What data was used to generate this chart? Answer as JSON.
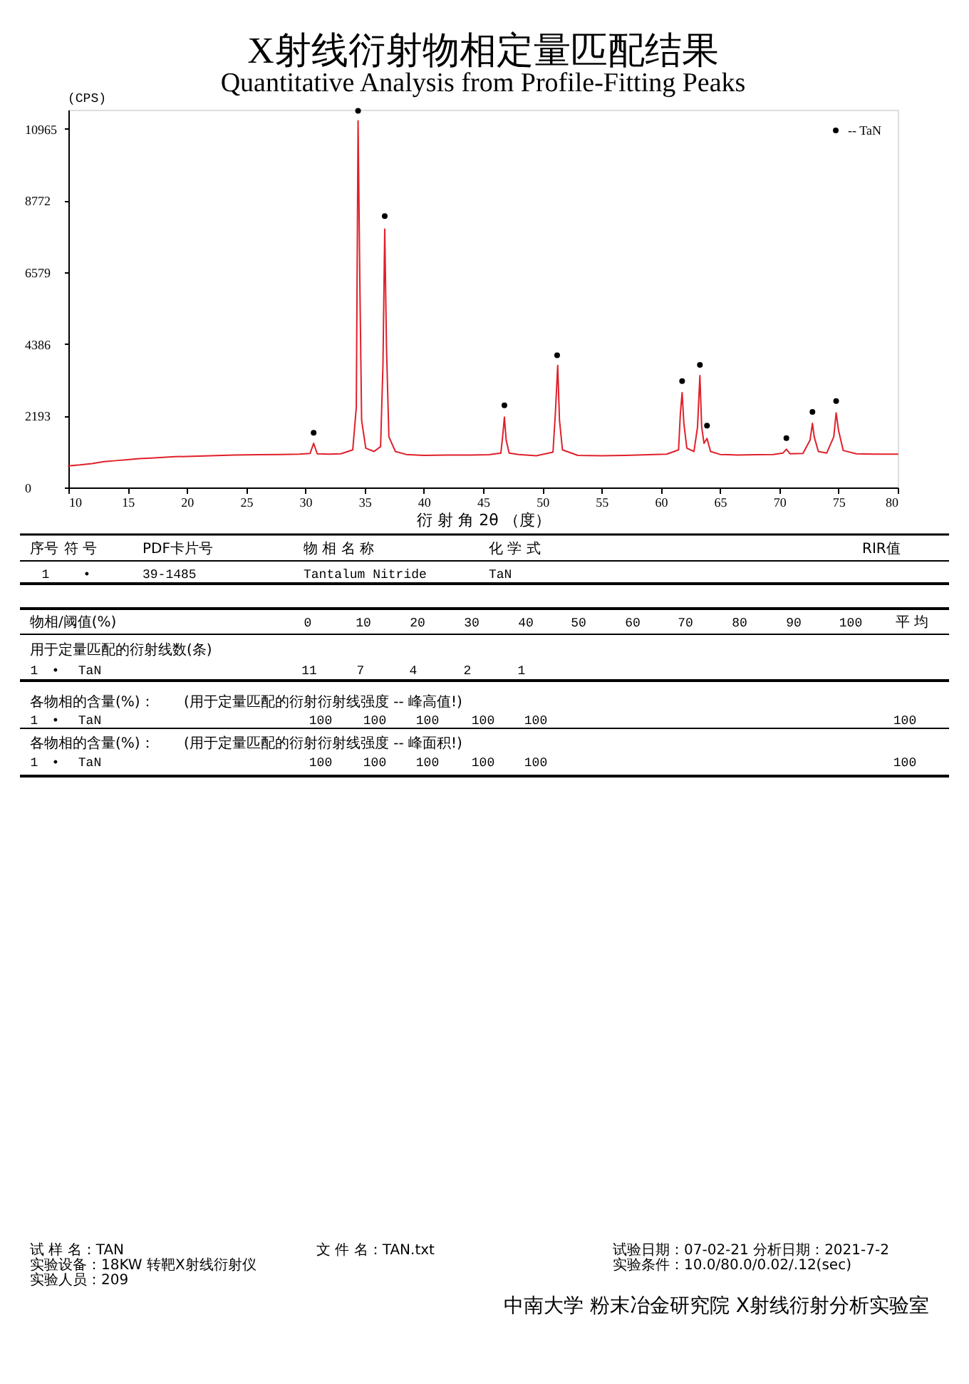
{
  "chart_data": {
    "type": "line",
    "title": "X射线衍射物相定量匹配结果",
    "subtitle": "Quantitative Analysis from Profile-Fitting Peaks",
    "xlabel": "衍 射 角 2θ （度）",
    "ylabel": "(CPS)",
    "xlim": [
      10,
      80
    ],
    "xticks": [
      10,
      15,
      20,
      25,
      30,
      35,
      40,
      45,
      50,
      55,
      60,
      65,
      70,
      75,
      80
    ],
    "ylim": [
      0,
      11550
    ],
    "yticks": [
      0,
      2193,
      4386,
      6579,
      8772,
      10965
    ],
    "legend": "top right",
    "series": [
      {
        "color": "#e0202a",
        "x": [
          10,
          11,
          12,
          13,
          14,
          15,
          16,
          17,
          18,
          19,
          20,
          22,
          24,
          26,
          28,
          29.5,
          30.4,
          30.7,
          31,
          32,
          33,
          34,
          34.3,
          34.45,
          34.6,
          34.75,
          35.1,
          35.8,
          36.35,
          36.55,
          36.7,
          36.85,
          37.05,
          37.6,
          38.5,
          40,
          42,
          44,
          45.5,
          46.5,
          46.65,
          46.8,
          46.95,
          47.2,
          48,
          49.5,
          50.9,
          51.1,
          51.3,
          51.45,
          51.7,
          53,
          55,
          57,
          59,
          60.5,
          61.5,
          61.65,
          61.8,
          61.95,
          62.2,
          62.8,
          63.1,
          63.3,
          63.45,
          63.65,
          63.9,
          64.2,
          65,
          66.5,
          68,
          69.5,
          70.3,
          70.6,
          70.9,
          72,
          72.6,
          72.8,
          72.95,
          73.3,
          74,
          74.6,
          74.8,
          75,
          75.4,
          76.5,
          78,
          80
        ],
        "values": [
          660,
          690,
          730,
          790,
          820,
          850,
          880,
          900,
          920,
          940,
          950,
          970,
          990,
          1000,
          1010,
          1020,
          1040,
          1350,
          1030,
          1020,
          1030,
          1150,
          2450,
          11210,
          6250,
          2050,
          1200,
          1100,
          1250,
          3750,
          7900,
          4250,
          1550,
          1100,
          1010,
          980,
          990,
          990,
          1000,
          1050,
          1550,
          2150,
          1450,
          1050,
          1010,
          970,
          1080,
          2250,
          3730,
          2050,
          1150,
          980,
          970,
          980,
          1000,
          1020,
          1150,
          2250,
          2900,
          1950,
          1200,
          1100,
          1850,
          3420,
          1850,
          1350,
          1500,
          1100,
          1010,
          990,
          1000,
          1010,
          1050,
          1170,
          1030,
          1040,
          1450,
          1960,
          1550,
          1100,
          1050,
          1550,
          2280,
          1750,
          1130,
          1030,
          1020,
          1020
        ]
      },
      {
        "type": "scatter",
        "name": "-- TaN",
        "color": "#000000",
        "marker": "circle",
        "x": [
          30.7,
          34.45,
          36.7,
          46.8,
          51.25,
          61.8,
          63.3,
          63.9,
          70.6,
          72.8,
          74.8
        ],
        "values": [
          1670,
          11520,
          8300,
          2510,
          4040,
          3250,
          3750,
          1890,
          1510,
          2310,
          2640
        ]
      }
    ],
    "annotations": [
      "序号",
      "符 号",
      "PDF卡片号",
      "物 相 名 称",
      "化 学 式",
      "RIR值",
      "1",
      "•",
      "39-1485",
      "Tantalum Nitride",
      "TaN",
      "物相/阈值(%)",
      "0",
      "10",
      "20",
      "30",
      "40",
      "50",
      "60",
      "70",
      "80",
      "90",
      "100",
      "平 均",
      "用于定量匹配的衍射线数(条)",
      "1",
      "•",
      "TaN",
      "11",
      "7",
      "4",
      "2",
      "1",
      "各物相的含量(%)：",
      "(用于定量匹配的衍射衍射线强度 -- 峰高值!)",
      "1",
      "•",
      "TaN",
      "100",
      "100",
      "100",
      "100",
      "100",
      "100",
      "各物相的含量(%)：",
      "(用于定量匹配的衍射衍射线强度 -- 峰面积!)",
      "1",
      "•",
      "TaN",
      "100",
      "100",
      "100",
      "100",
      "100",
      "100",
      "试 样 名：TAN",
      "文 件 名：TAN.txt",
      "试验日期：07-02-21 分析日期：2021-7-2",
      "实验设备：18KW 转靶X射线衍射仪",
      "实验条件：10.0/80.0/0.02/.12(sec)",
      "实验人员：209",
      "中南大学 粉末冶金研究院 X射线衍射分析实验室"
    ]
  }
}
